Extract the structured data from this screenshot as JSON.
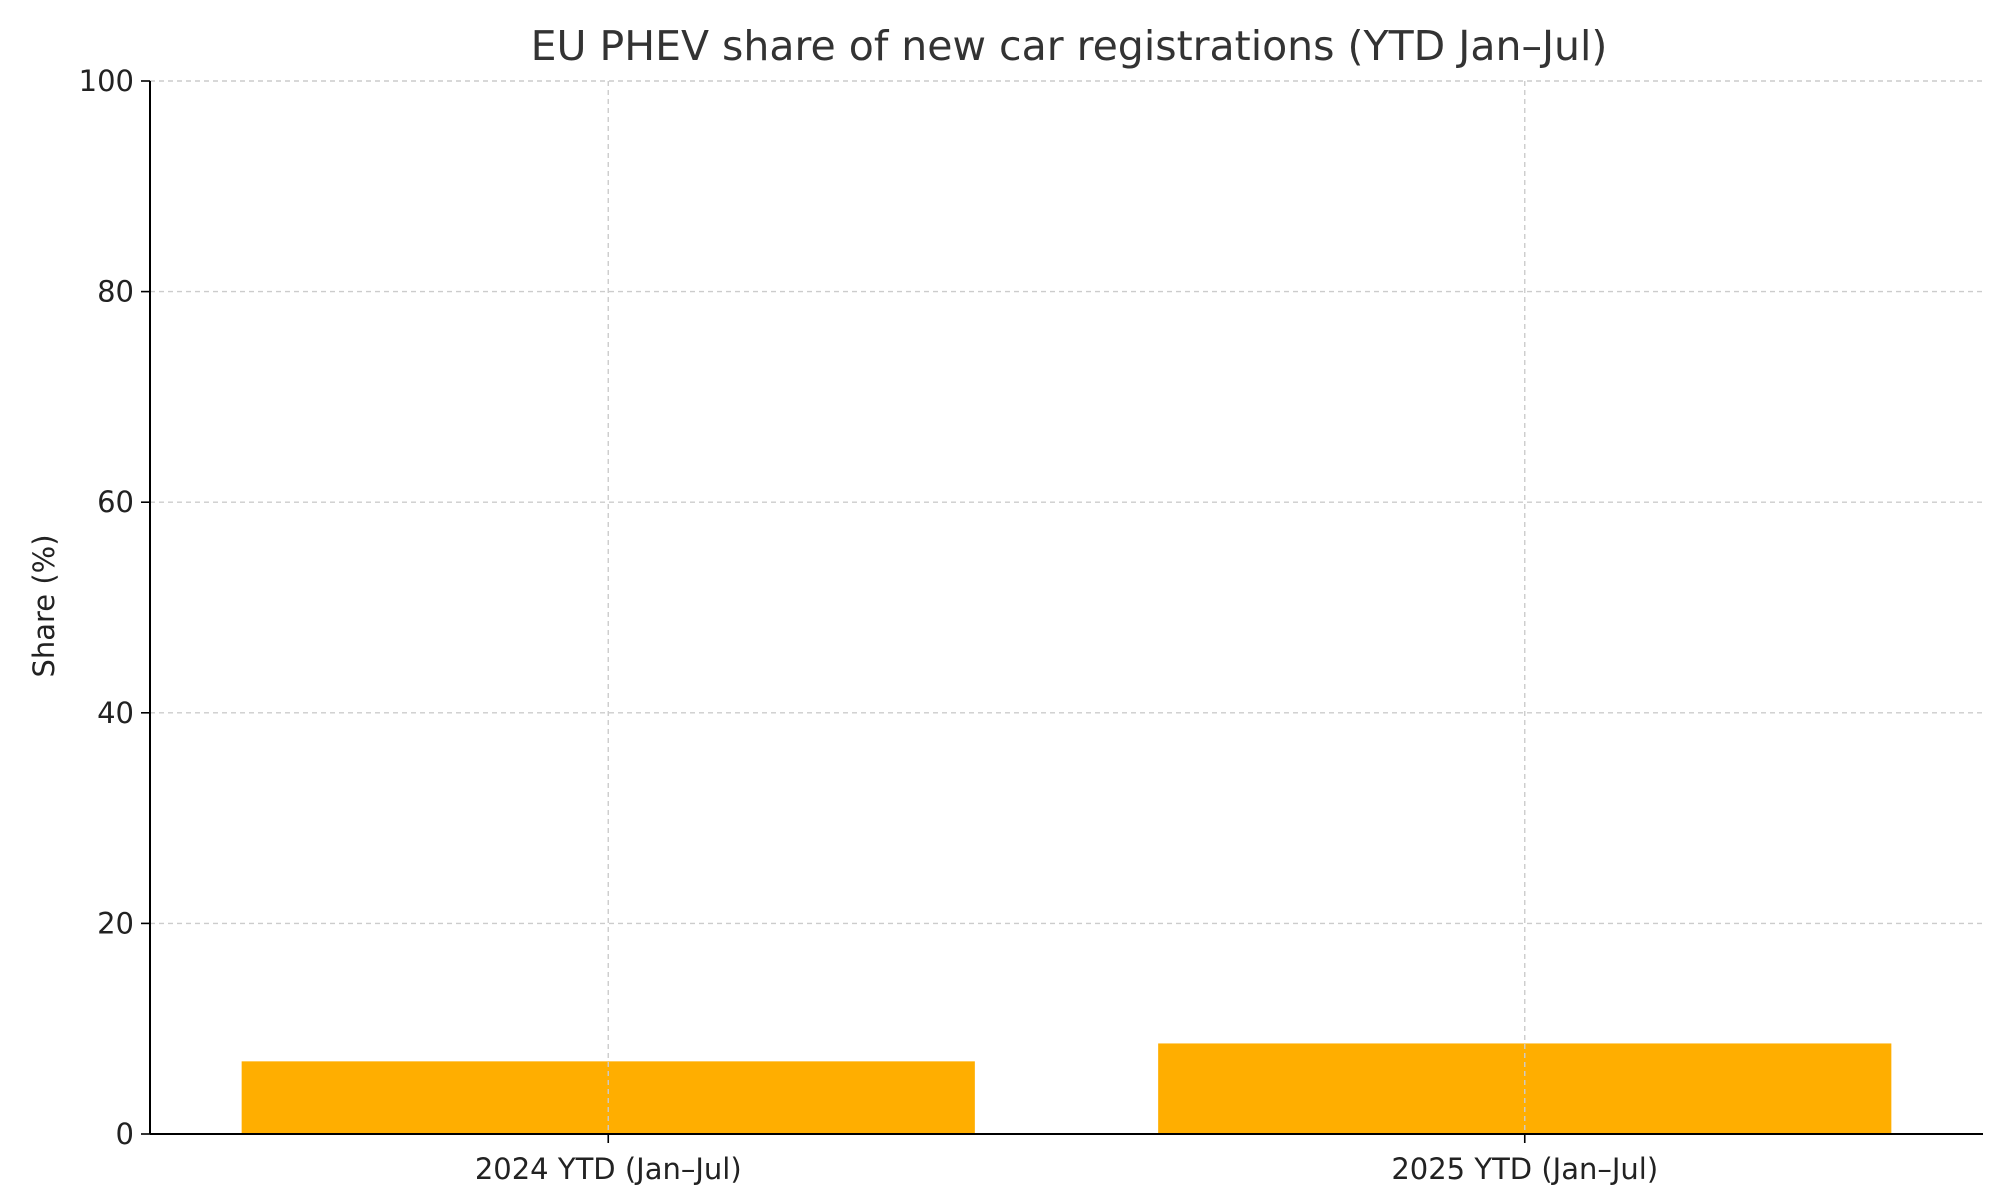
{
  "chart_data": {
    "type": "bar",
    "title": "EU PHEV share of new car registrations (YTD Jan–Jul)",
    "xlabel": "",
    "ylabel": "Share (%)",
    "categories": [
      "2024 YTD (Jan–Jul)",
      "2025 YTD (Jan–Jul)"
    ],
    "values": [
      6.9,
      8.6
    ],
    "ylim": [
      0,
      100
    ],
    "yticks": [
      0,
      20,
      40,
      60,
      80,
      100
    ],
    "grid": true,
    "legend": "none",
    "colors": {
      "bar": "#FFAE00",
      "axis": "#000000",
      "grid": "#cccccc",
      "text": "#333333"
    }
  }
}
